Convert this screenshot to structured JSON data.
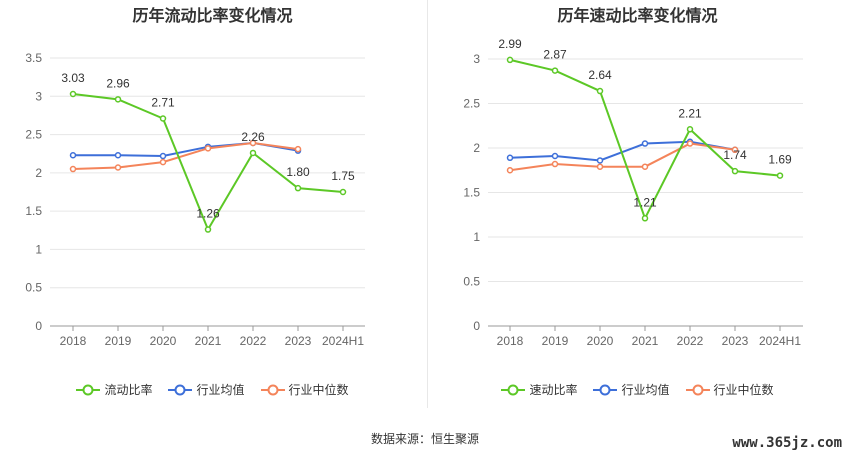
{
  "source_text": "数据来源：恒生聚源",
  "watermark": "www.365jz.com",
  "chart_data": [
    {
      "type": "line",
      "title": "历年流动比率变化情况",
      "categories": [
        "2018",
        "2019",
        "2020",
        "2021",
        "2022",
        "2023",
        "2024H1"
      ],
      "ylim": [
        0,
        3.5
      ],
      "yticks": [
        "0",
        "0.5",
        "1",
        "1.5",
        "2",
        "2.5",
        "3",
        "3.5"
      ],
      "ytick_values": [
        0,
        0.5,
        1,
        1.5,
        2,
        2.5,
        3,
        3.5
      ],
      "grid": true,
      "legend_position": "bottom",
      "series": [
        {
          "name": "流动比率",
          "color": "#5cc826",
          "values": [
            3.03,
            2.96,
            2.71,
            1.26,
            2.26,
            1.8,
            1.75
          ],
          "labels": [
            "3.03",
            "2.96",
            "2.71",
            "1.26",
            "2.26",
            "1.80",
            "1.75"
          ]
        },
        {
          "name": "行业均值",
          "color": "#3d6fd9",
          "values": [
            2.23,
            2.23,
            2.22,
            2.34,
            2.39,
            2.29,
            null
          ]
        },
        {
          "name": "行业中位数",
          "color": "#f4845a",
          "values": [
            2.05,
            2.07,
            2.14,
            2.32,
            2.39,
            2.31,
            null
          ]
        }
      ]
    },
    {
      "type": "line",
      "title": "历年速动比率变化情况",
      "categories": [
        "2018",
        "2019",
        "2020",
        "2021",
        "2022",
        "2023",
        "2024H1"
      ],
      "ylim": [
        0,
        3
      ],
      "yticks": [
        "0",
        "0.5",
        "1",
        "1.5",
        "2",
        "2.5",
        "3"
      ],
      "ytick_values": [
        0,
        0.5,
        1,
        1.5,
        2,
        2.5,
        3
      ],
      "grid": true,
      "legend_position": "bottom",
      "series": [
        {
          "name": "速动比率",
          "color": "#5cc826",
          "values": [
            2.99,
            2.87,
            2.64,
            1.21,
            2.21,
            1.74,
            1.69
          ],
          "labels": [
            "2.99",
            "2.87",
            "2.64",
            "1.21",
            "2.21",
            "1.74",
            "1.69"
          ]
        },
        {
          "name": "行业均值",
          "color": "#3d6fd9",
          "values": [
            1.89,
            1.91,
            1.86,
            2.05,
            2.07,
            1.98,
            null
          ]
        },
        {
          "name": "行业中位数",
          "color": "#f4845a",
          "values": [
            1.75,
            1.82,
            1.79,
            1.79,
            2.05,
            1.98,
            null
          ]
        }
      ]
    }
  ]
}
